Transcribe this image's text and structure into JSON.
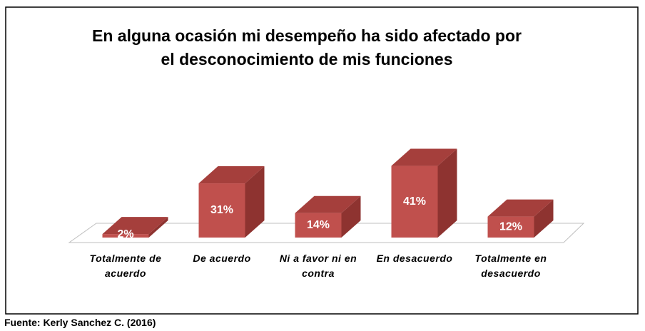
{
  "chart_data": {
    "type": "bar3d",
    "title": "En alguna ocasión mi desempeño ha sido afectado por el desconocimiento de mis funciones",
    "categories": [
      "Totalmente de acuerdo",
      "De acuerdo",
      "Ni a favor ni en contra",
      "En desacuerdo",
      "Totalmente en desacuerdo"
    ],
    "values": [
      2,
      31,
      14,
      41,
      12
    ],
    "value_labels": [
      "2%",
      "31%",
      "14%",
      "41%",
      "12%"
    ],
    "color": "#c0504d",
    "source": "Fuente: Kerly Sanchez C. (2016)"
  }
}
